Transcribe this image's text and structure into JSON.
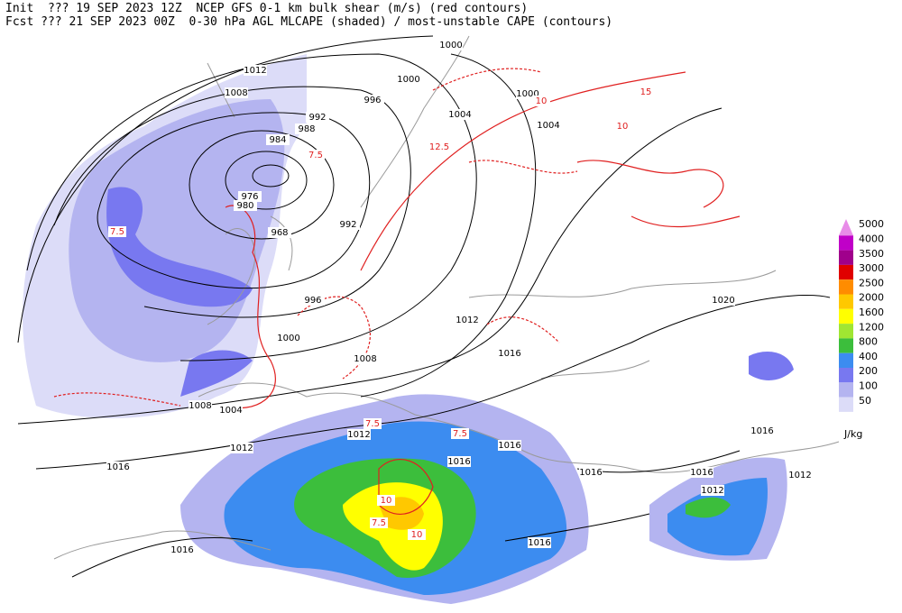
{
  "header": {
    "line1": "Init  ??? 19 SEP 2023 12Z  NCEP GFS 0-1 km bulk shear (m/s) (red contours)",
    "line2": "Fcst ??? 21 SEP 2023 00Z  0-30 hPa AGL MLCAPE (shaded) / most-unstable CAPE (contours)"
  },
  "colorbar": {
    "unit": "J/kg",
    "levels": [
      {
        "value": 5000,
        "color": "#e88ce8"
      },
      {
        "value": 4000,
        "color": "#c000c8"
      },
      {
        "value": 3500,
        "color": "#a0008c"
      },
      {
        "value": 3000,
        "color": "#e00000"
      },
      {
        "value": 2500,
        "color": "#ff8c00"
      },
      {
        "value": 2000,
        "color": "#ffc800"
      },
      {
        "value": 1600,
        "color": "#ffff00"
      },
      {
        "value": 1200,
        "color": "#a0e632"
      },
      {
        "value": 800,
        "color": "#3cbe3c"
      },
      {
        "value": 400,
        "color": "#3c8cf0"
      },
      {
        "value": 200,
        "color": "#7878f0"
      },
      {
        "value": 100,
        "color": "#b4b4f0"
      },
      {
        "value": 50,
        "color": "#dcdcf8"
      }
    ]
  },
  "isobar_labels": [
    1000,
    1012,
    1008,
    1000,
    996,
    1004,
    1000,
    1004,
    992,
    988,
    984,
    976,
    980,
    968,
    992,
    996,
    1000,
    1008,
    1012,
    1016,
    1020,
    1008,
    1004,
    1012,
    1012,
    1016,
    1016,
    1016,
    1016,
    1016,
    1012,
    1016,
    1012,
    1016,
    1016
  ],
  "shear_labels": [
    7.5,
    7.5,
    7.5,
    10,
    7.5,
    10,
    15,
    10,
    12.5,
    7.5,
    10
  ]
}
